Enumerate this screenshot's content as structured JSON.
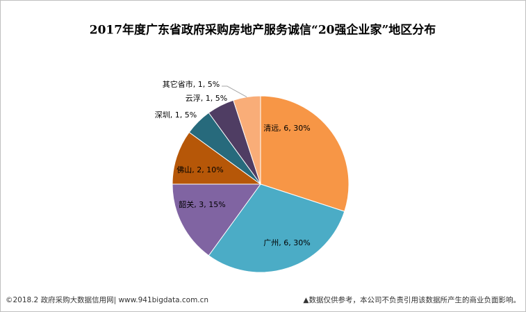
{
  "chart_data": {
    "type": "pie",
    "title": "2017年度广东省政府采购房地产服务诚信“20强企业家”地区分布",
    "categories": [
      "清远",
      "广州",
      "韶关",
      "佛山",
      "深圳",
      "云浮",
      "其它省市"
    ],
    "values": [
      6,
      6,
      3,
      2,
      1,
      1,
      1
    ],
    "value_labels": [
      "清远, 6, 30%",
      "广州, 6, 30%",
      "韶关, 3, 15%",
      "佛山, 2, 10%",
      "深圳, 1, 5%",
      "云浮, 1, 5%",
      "其它省市, 1, 5%"
    ],
    "colors": [
      "#f79646",
      "#4bacc6",
      "#8064a2",
      "#b65708",
      "#276a7c",
      "#4f3d63",
      "#f9ad78"
    ]
  },
  "footer": {
    "left": "©2018.2 政府采购大数据信用网| www.941bigdata.com.cn",
    "right": "▲数据仅供参考，本公司不负责引用该数据所产生的商业负面影响。"
  }
}
